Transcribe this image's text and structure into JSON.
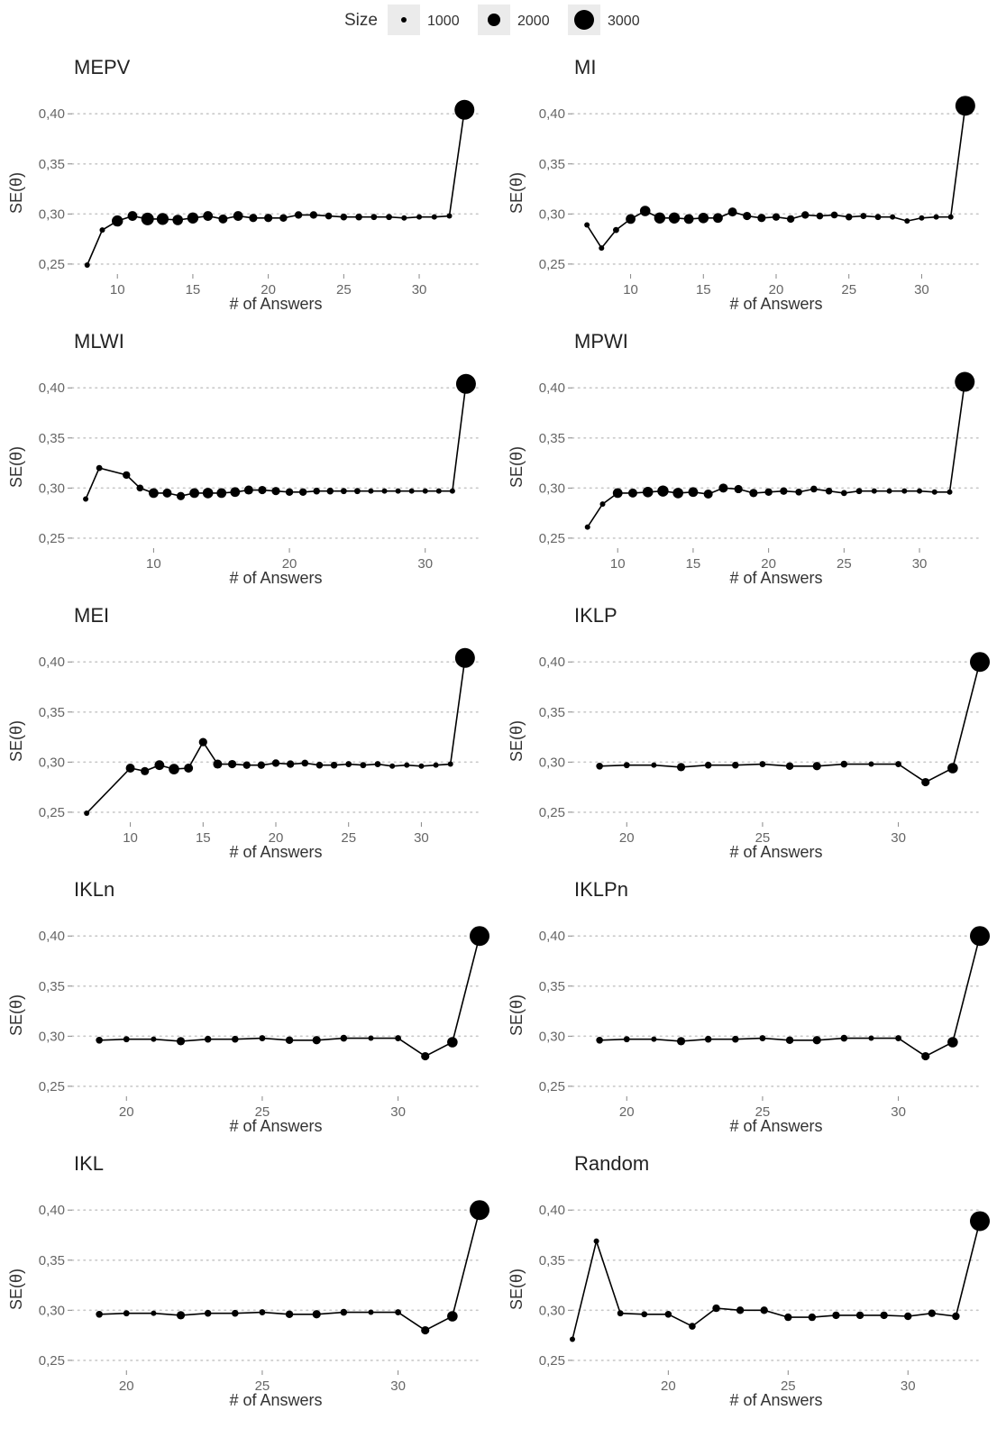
{
  "legend": {
    "title": "Size",
    "items": [
      {
        "label": "1000",
        "value": 1000
      },
      {
        "label": "2000",
        "value": 2000
      },
      {
        "label": "3000",
        "value": 3000
      }
    ]
  },
  "chart_data": [
    {
      "type": "line",
      "title": "MEPV",
      "xlabel": "# of Answers",
      "ylabel": "SE(θ)",
      "xlim": [
        7,
        34
      ],
      "ylim": [
        0.24,
        0.42
      ],
      "xticks": [
        10,
        15,
        20,
        25,
        30
      ],
      "yticks": [
        0.25,
        0.3,
        0.35,
        0.4
      ],
      "ytick_labels": [
        "0,25",
        "0,30",
        "0,35",
        "0,40"
      ],
      "grid": "horizontal-dotted",
      "legend": "top",
      "series": [
        {
          "x": [
            8,
            9,
            10,
            11,
            12,
            13,
            14,
            15,
            16,
            17,
            18,
            19,
            20,
            21,
            22,
            23,
            24,
            25,
            26,
            27,
            28,
            29,
            30,
            31,
            32,
            33
          ],
          "y": [
            0.249,
            0.284,
            0.293,
            0.298,
            0.295,
            0.295,
            0.294,
            0.296,
            0.298,
            0.295,
            0.298,
            0.296,
            0.296,
            0.296,
            0.299,
            0.299,
            0.298,
            0.297,
            0.297,
            0.297,
            0.297,
            0.296,
            0.297,
            0.297,
            0.298,
            0.404
          ],
          "size": [
            1000,
            1000,
            1800,
            1600,
            2000,
            1900,
            1700,
            1800,
            1600,
            1500,
            1600,
            1400,
            1400,
            1300,
            1300,
            1300,
            1200,
            1200,
            1200,
            1100,
            1100,
            1000,
            1000,
            1000,
            1000,
            3000
          ]
        }
      ]
    },
    {
      "type": "line",
      "title": "MI",
      "xlabel": "# of Answers",
      "ylabel": "SE(θ)",
      "xlim": [
        6,
        34
      ],
      "ylim": [
        0.24,
        0.42
      ],
      "xticks": [
        10,
        15,
        20,
        25,
        30
      ],
      "yticks": [
        0.25,
        0.3,
        0.35,
        0.4
      ],
      "ytick_labels": [
        "0,25",
        "0,30",
        "0,35",
        "0,40"
      ],
      "grid": "horizontal-dotted",
      "legend": "top",
      "series": [
        {
          "x": [
            7,
            8,
            9,
            10,
            11,
            12,
            13,
            14,
            15,
            16,
            17,
            18,
            19,
            20,
            21,
            22,
            23,
            24,
            25,
            26,
            27,
            28,
            29,
            30,
            31,
            32,
            33
          ],
          "y": [
            0.289,
            0.266,
            0.284,
            0.295,
            0.303,
            0.296,
            0.296,
            0.295,
            0.296,
            0.296,
            0.302,
            0.298,
            0.296,
            0.297,
            0.295,
            0.299,
            0.298,
            0.299,
            0.297,
            0.298,
            0.297,
            0.297,
            0.293,
            0.296,
            0.297,
            0.297,
            0.408
          ],
          "size": [
            1000,
            1000,
            1100,
            1600,
            1700,
            1800,
            1800,
            1600,
            1700,
            1600,
            1500,
            1400,
            1400,
            1300,
            1300,
            1300,
            1200,
            1200,
            1200,
            1100,
            1100,
            1000,
            1000,
            1000,
            1000,
            1000,
            3000
          ]
        }
      ]
    },
    {
      "type": "line",
      "title": "MLWI",
      "xlabel": "# of Answers",
      "ylabel": "SE(θ)",
      "xlim": [
        4,
        34
      ],
      "ylim": [
        0.24,
        0.42
      ],
      "xticks": [
        10,
        20,
        30
      ],
      "yticks": [
        0.25,
        0.3,
        0.35,
        0.4
      ],
      "ytick_labels": [
        "0,25",
        "0,30",
        "0,35",
        "0,40"
      ],
      "grid": "horizontal-dotted",
      "legend": "top",
      "series": [
        {
          "x": [
            5,
            6,
            8,
            9,
            10,
            11,
            12,
            13,
            14,
            15,
            16,
            17,
            18,
            19,
            20,
            21,
            22,
            23,
            24,
            25,
            26,
            27,
            28,
            29,
            30,
            31,
            32,
            33
          ],
          "y": [
            0.289,
            0.32,
            0.313,
            0.3,
            0.295,
            0.295,
            0.292,
            0.295,
            0.295,
            0.295,
            0.296,
            0.298,
            0.298,
            0.297,
            0.296,
            0.296,
            0.297,
            0.297,
            0.297,
            0.297,
            0.297,
            0.297,
            0.297,
            0.297,
            0.297,
            0.297,
            0.297,
            0.404
          ],
          "size": [
            1000,
            1100,
            1300,
            1200,
            1600,
            1500,
            1400,
            1600,
            1700,
            1600,
            1600,
            1500,
            1400,
            1400,
            1300,
            1300,
            1200,
            1200,
            1100,
            1100,
            1000,
            1000,
            1000,
            1000,
            1000,
            1000,
            1000,
            3000
          ]
        }
      ]
    },
    {
      "type": "line",
      "title": "MPWI",
      "xlabel": "# of Answers",
      "ylabel": "SE(θ)",
      "xlim": [
        7,
        34
      ],
      "ylim": [
        0.24,
        0.42
      ],
      "xticks": [
        10,
        15,
        20,
        25,
        30
      ],
      "yticks": [
        0.25,
        0.3,
        0.35,
        0.4
      ],
      "ytick_labels": [
        "0,25",
        "0,30",
        "0,35",
        "0,40"
      ],
      "grid": "horizontal-dotted",
      "legend": "top",
      "series": [
        {
          "x": [
            8,
            9,
            10,
            11,
            12,
            13,
            14,
            15,
            16,
            17,
            18,
            19,
            20,
            21,
            22,
            23,
            24,
            25,
            26,
            27,
            28,
            29,
            30,
            31,
            32,
            33
          ],
          "y": [
            0.261,
            0.284,
            0.295,
            0.295,
            0.296,
            0.297,
            0.295,
            0.296,
            0.294,
            0.3,
            0.299,
            0.295,
            0.296,
            0.297,
            0.296,
            0.299,
            0.297,
            0.295,
            0.297,
            0.297,
            0.297,
            0.297,
            0.297,
            0.296,
            0.296,
            0.406
          ],
          "size": [
            1000,
            1000,
            1600,
            1500,
            1700,
            1800,
            1700,
            1600,
            1500,
            1500,
            1400,
            1400,
            1300,
            1300,
            1200,
            1200,
            1200,
            1100,
            1100,
            1000,
            1000,
            1000,
            1000,
            1000,
            1000,
            3000
          ]
        }
      ]
    },
    {
      "type": "line",
      "title": "MEI",
      "xlabel": "# of Answers",
      "ylabel": "SE(θ)",
      "xlim": [
        6,
        34
      ],
      "ylim": [
        0.24,
        0.42
      ],
      "xticks": [
        10,
        15,
        20,
        25,
        30
      ],
      "yticks": [
        0.25,
        0.3,
        0.35,
        0.4
      ],
      "ytick_labels": [
        "0,25",
        "0,30",
        "0,35",
        "0,40"
      ],
      "grid": "horizontal-dotted",
      "legend": "top",
      "series": [
        {
          "x": [
            7,
            10,
            11,
            12,
            13,
            14,
            15,
            16,
            17,
            18,
            19,
            20,
            21,
            22,
            23,
            24,
            25,
            26,
            27,
            28,
            29,
            30,
            31,
            32,
            33
          ],
          "y": [
            0.249,
            0.294,
            0.291,
            0.297,
            0.293,
            0.294,
            0.32,
            0.298,
            0.298,
            0.297,
            0.297,
            0.299,
            0.298,
            0.299,
            0.297,
            0.297,
            0.298,
            0.297,
            0.298,
            0.296,
            0.297,
            0.296,
            0.297,
            0.298,
            0.404
          ],
          "size": [
            1000,
            1500,
            1400,
            1600,
            1700,
            1500,
            1400,
            1500,
            1400,
            1300,
            1300,
            1300,
            1300,
            1200,
            1200,
            1200,
            1100,
            1100,
            1100,
            1000,
            1000,
            1000,
            1000,
            1000,
            3000
          ]
        }
      ]
    },
    {
      "type": "line",
      "title": "IKLP",
      "xlabel": "# of Answers",
      "ylabel": "SE(θ)",
      "xlim": [
        18,
        33
      ],
      "ylim": [
        0.24,
        0.42
      ],
      "xticks": [
        20,
        25,
        30
      ],
      "yticks": [
        0.25,
        0.3,
        0.35,
        0.4
      ],
      "ytick_labels": [
        "0,25",
        "0,30",
        "0,35",
        "0,40"
      ],
      "grid": "horizontal-dotted",
      "legend": "top",
      "series": [
        {
          "x": [
            19,
            20,
            21,
            22,
            23,
            24,
            25,
            26,
            27,
            28,
            29,
            30,
            31,
            32,
            33
          ],
          "y": [
            0.296,
            0.297,
            0.297,
            0.295,
            0.297,
            0.297,
            0.298,
            0.296,
            0.296,
            0.298,
            0.298,
            0.298,
            0.28,
            0.294,
            0.4
          ],
          "size": [
            1200,
            1100,
            1000,
            1400,
            1200,
            1200,
            1100,
            1300,
            1400,
            1200,
            1000,
            1100,
            1400,
            1700,
            3000
          ]
        }
      ]
    },
    {
      "type": "line",
      "title": "IKLn",
      "xlabel": "# of Answers",
      "ylabel": "SE(θ)",
      "xlim": [
        18,
        33
      ],
      "ylim": [
        0.24,
        0.42
      ],
      "xticks": [
        20,
        25,
        30
      ],
      "yticks": [
        0.25,
        0.3,
        0.35,
        0.4
      ],
      "ytick_labels": [
        "0,25",
        "0,30",
        "0,35",
        "0,40"
      ],
      "grid": "horizontal-dotted",
      "legend": "top",
      "series": [
        {
          "x": [
            19,
            20,
            21,
            22,
            23,
            24,
            25,
            26,
            27,
            28,
            29,
            30,
            31,
            32,
            33
          ],
          "y": [
            0.296,
            0.297,
            0.297,
            0.295,
            0.297,
            0.297,
            0.298,
            0.296,
            0.296,
            0.298,
            0.298,
            0.298,
            0.28,
            0.294,
            0.4
          ],
          "size": [
            1200,
            1100,
            1000,
            1400,
            1200,
            1200,
            1100,
            1300,
            1400,
            1200,
            1000,
            1100,
            1400,
            1700,
            3000
          ]
        }
      ]
    },
    {
      "type": "line",
      "title": "IKLPn",
      "xlabel": "# of Answers",
      "ylabel": "SE(θ)",
      "xlim": [
        18,
        33
      ],
      "ylim": [
        0.24,
        0.42
      ],
      "xticks": [
        20,
        25,
        30
      ],
      "yticks": [
        0.25,
        0.3,
        0.35,
        0.4
      ],
      "ytick_labels": [
        "0,25",
        "0,30",
        "0,35",
        "0,40"
      ],
      "grid": "horizontal-dotted",
      "legend": "top",
      "series": [
        {
          "x": [
            19,
            20,
            21,
            22,
            23,
            24,
            25,
            26,
            27,
            28,
            29,
            30,
            31,
            32,
            33
          ],
          "y": [
            0.296,
            0.297,
            0.297,
            0.295,
            0.297,
            0.297,
            0.298,
            0.296,
            0.296,
            0.298,
            0.298,
            0.298,
            0.28,
            0.294,
            0.4
          ],
          "size": [
            1200,
            1100,
            1000,
            1400,
            1200,
            1200,
            1100,
            1300,
            1400,
            1200,
            1000,
            1100,
            1400,
            1700,
            3000
          ]
        }
      ]
    },
    {
      "type": "line",
      "title": "IKL",
      "xlabel": "# of Answers",
      "ylabel": "SE(θ)",
      "xlim": [
        18,
        33
      ],
      "ylim": [
        0.24,
        0.42
      ],
      "xticks": [
        20,
        25,
        30
      ],
      "yticks": [
        0.25,
        0.3,
        0.35,
        0.4
      ],
      "ytick_labels": [
        "0,25",
        "0,30",
        "0,35",
        "0,40"
      ],
      "grid": "horizontal-dotted",
      "legend": "top",
      "series": [
        {
          "x": [
            19,
            20,
            21,
            22,
            23,
            24,
            25,
            26,
            27,
            28,
            29,
            30,
            31,
            32,
            33
          ],
          "y": [
            0.296,
            0.297,
            0.297,
            0.295,
            0.297,
            0.297,
            0.298,
            0.296,
            0.296,
            0.298,
            0.298,
            0.298,
            0.28,
            0.294,
            0.4
          ],
          "size": [
            1200,
            1100,
            1000,
            1400,
            1200,
            1200,
            1100,
            1300,
            1400,
            1200,
            1000,
            1100,
            1400,
            1700,
            3000
          ]
        }
      ]
    },
    {
      "type": "line",
      "title": "Random",
      "xlabel": "# of Answers",
      "ylabel": "SE(θ)",
      "xlim": [
        16,
        33
      ],
      "ylim": [
        0.24,
        0.42
      ],
      "xticks": [
        20,
        25,
        30
      ],
      "yticks": [
        0.25,
        0.3,
        0.35,
        0.4
      ],
      "ytick_labels": [
        "0,25",
        "0,30",
        "0,35",
        "0,40"
      ],
      "grid": "horizontal-dotted",
      "legend": "top",
      "series": [
        {
          "x": [
            16,
            17,
            18,
            19,
            20,
            21,
            22,
            23,
            24,
            25,
            26,
            27,
            28,
            29,
            30,
            31,
            32,
            33
          ],
          "y": [
            0.271,
            0.369,
            0.297,
            0.296,
            0.296,
            0.284,
            0.302,
            0.3,
            0.3,
            0.293,
            0.293,
            0.295,
            0.295,
            0.295,
            0.294,
            0.297,
            0.294,
            0.389
          ],
          "size": [
            1000,
            1000,
            1100,
            1100,
            1200,
            1200,
            1300,
            1300,
            1300,
            1300,
            1300,
            1300,
            1300,
            1300,
            1300,
            1300,
            1300,
            3000
          ]
        }
      ]
    }
  ]
}
